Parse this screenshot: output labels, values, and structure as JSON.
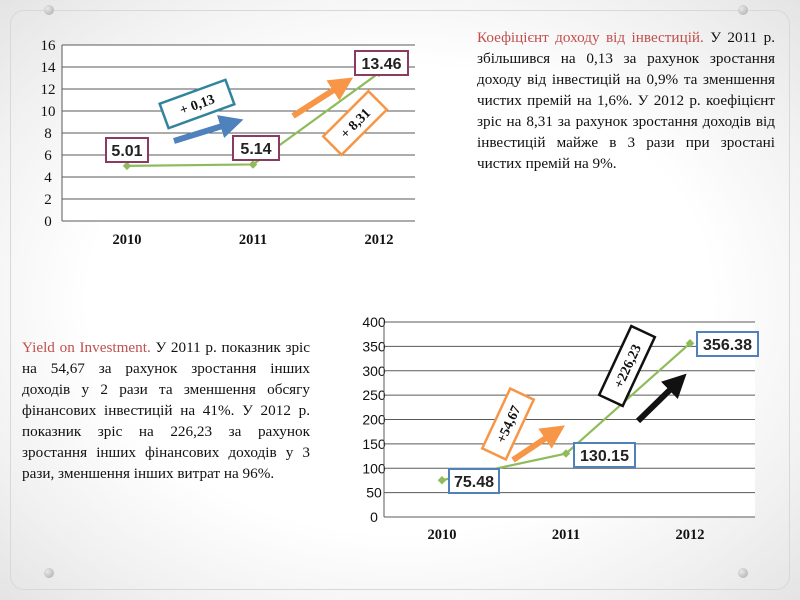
{
  "text_1": {
    "lead": "Коефіцієнт доходу від інвестицій.",
    "body": "У 2011 р. збільшився на 0,13 за рахунок зростання доходу від інвестицій на 0,9% та зменшення чистих премій на 1,6%. У 2012 р. коефіцієнт зріс на 8,31 за рахунок зростання доходів від інвестицій майже в 3 рази при зростані чистих премій на 9%."
  },
  "text_2": {
    "lead": "Yield on Investment.",
    "body": "У 2011 р. показник зріс на 54,67 за рахунок зростання інших доходів у 2 рази та зменшення обсягу фінансових інвестицій на 41%. У 2012 р. показник зріс на 226,23 за рахунок зростання інших фінансових доходів у 3 рази, зменшення інших витрат на 96%."
  },
  "chart_data": [
    {
      "type": "line",
      "categories": [
        "2010",
        "2011",
        "2012"
      ],
      "values": [
        5.01,
        5.14,
        13.46
      ],
      "data_labels": [
        "5.01",
        "5.14",
        "13.46"
      ],
      "ylim": [
        0,
        16
      ],
      "yticks": [
        "0",
        "2",
        "4",
        "6",
        "8",
        "10",
        "12",
        "14",
        "16"
      ],
      "grid": true,
      "line_color": "#8fbc5a",
      "changes": [
        "+ 0,13",
        "+ 8,31"
      ],
      "change_colors": [
        "#31849b",
        "#f79646"
      ]
    },
    {
      "type": "line",
      "categories": [
        "2010",
        "2011",
        "2012"
      ],
      "values": [
        75.48,
        130.15,
        356.38
      ],
      "data_labels": [
        "75.48",
        "130.15",
        "356.38"
      ],
      "ylim": [
        0,
        400
      ],
      "yticks": [
        "0",
        "50",
        "100",
        "150",
        "200",
        "250",
        "300",
        "350",
        "400"
      ],
      "grid": true,
      "line_color": "#8fbc5a",
      "changes": [
        "+54,67",
        "+226,23"
      ],
      "change_colors": [
        "#f79646",
        "#111111"
      ]
    }
  ]
}
